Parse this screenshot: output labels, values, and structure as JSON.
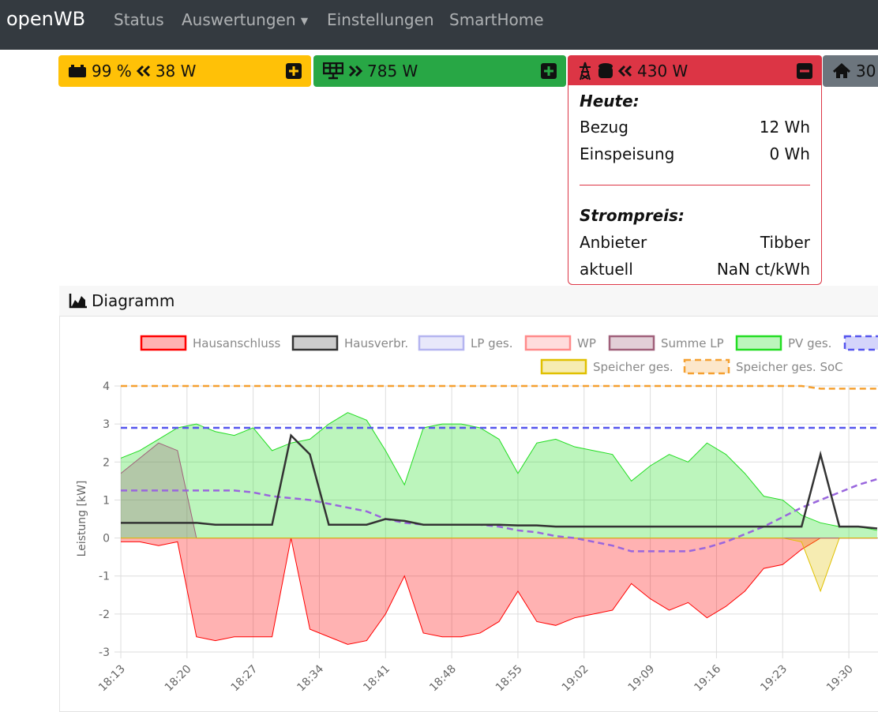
{
  "navbar": {
    "brand": "openWB",
    "links": [
      "Status",
      "Auswertungen",
      "Einstellungen",
      "SmartHome"
    ]
  },
  "status": {
    "battery": {
      "soc": "99 %",
      "power": "38 W"
    },
    "pv": {
      "power": "785 W"
    },
    "grid": {
      "power": "430 W",
      "details": {
        "today_title": "Heute:",
        "rows": [
          [
            "Bezug",
            "12 Wh"
          ],
          [
            "Einspeisung",
            "0 Wh"
          ]
        ],
        "price_title": "Strompreis:",
        "price_rows": [
          [
            "Anbieter",
            "Tibber"
          ],
          [
            "aktuell",
            "NaN ct/kWh"
          ]
        ]
      }
    },
    "house": {
      "power": "30"
    }
  },
  "diagram": {
    "title": "Diagramm"
  },
  "chart_data": {
    "type": "area",
    "ylabel": "Leistung [kW]",
    "x": [
      1093,
      1095,
      1097,
      1099,
      1101,
      1103,
      1105,
      1107,
      1109,
      1111,
      1113,
      1115,
      1117,
      1119,
      1121,
      1123,
      1125,
      1127,
      1129,
      1131,
      1133,
      1135,
      1137,
      1139,
      1141,
      1143,
      1145,
      1147,
      1149,
      1151,
      1153,
      1155,
      1157,
      1159,
      1161,
      1163,
      1165,
      1167,
      1169,
      1171,
      1173
    ],
    "xlim": [
      1093,
      1173
    ],
    "xticks": [
      {
        "value": 1093,
        "label": "18:13"
      },
      {
        "value": 1100,
        "label": "18:20"
      },
      {
        "value": 1107,
        "label": "18:27"
      },
      {
        "value": 1114,
        "label": "18:34"
      },
      {
        "value": 1121,
        "label": "18:41"
      },
      {
        "value": 1128,
        "label": "18:48"
      },
      {
        "value": 1135,
        "label": "18:55"
      },
      {
        "value": 1142,
        "label": "19:02"
      },
      {
        "value": 1149,
        "label": "19:09"
      },
      {
        "value": 1156,
        "label": "19:16"
      },
      {
        "value": 1163,
        "label": "19:23"
      },
      {
        "value": 1170,
        "label": "19:30"
      }
    ],
    "ylim": [
      -3,
      4
    ],
    "yticks": [
      -3,
      -2,
      -1,
      0,
      1,
      2,
      3,
      4
    ],
    "y2lim": [
      0,
      100
    ],
    "grid": true,
    "series": [
      {
        "name": "Hausanschluss",
        "color": "#ff0000",
        "fill": true,
        "dash": false,
        "values": [
          -0.1,
          -0.1,
          -0.2,
          -0.1,
          -2.6,
          -2.7,
          -2.6,
          -2.6,
          -2.6,
          0,
          -2.4,
          -2.6,
          -2.8,
          -2.7,
          -2.0,
          -1.0,
          -2.5,
          -2.6,
          -2.6,
          -2.5,
          -2.2,
          -1.4,
          -2.2,
          -2.3,
          -2.1,
          -2.0,
          -1.9,
          -1.2,
          -1.6,
          -1.9,
          -1.7,
          -2.1,
          -1.8,
          -1.4,
          -0.8,
          -0.7,
          -0.3,
          0,
          0,
          0,
          0
        ]
      },
      {
        "name": "Hausverbr.",
        "color": "#333333",
        "fill": false,
        "dash": false,
        "values": [
          0.4,
          0.4,
          0.4,
          0.4,
          0.4,
          0.35,
          0.35,
          0.35,
          0.35,
          2.7,
          2.2,
          0.35,
          0.35,
          0.35,
          0.5,
          0.45,
          0.35,
          0.35,
          0.35,
          0.35,
          0.35,
          0.33,
          0.33,
          0.3,
          0.3,
          0.3,
          0.3,
          0.3,
          0.3,
          0.3,
          0.3,
          0.3,
          0.3,
          0.3,
          0.3,
          0.3,
          0.3,
          2.2,
          0.3,
          0.3,
          0.25
        ]
      },
      {
        "name": "LP ges.",
        "color": "#b4b4f0",
        "fill": true,
        "dash": false,
        "values": [
          0,
          0,
          0,
          0,
          0,
          0,
          0,
          0,
          0,
          0,
          0,
          0,
          0,
          0,
          0,
          0,
          0,
          0,
          0,
          0,
          0,
          0,
          0,
          0,
          0,
          0,
          0,
          0,
          0,
          0,
          0,
          0,
          0,
          0,
          0,
          0,
          0,
          0,
          0,
          0,
          0
        ]
      },
      {
        "name": "WP",
        "color": "#ff8a8a",
        "fill": true,
        "dash": false,
        "values": [
          0,
          0,
          0,
          0,
          0,
          0,
          0,
          0,
          0,
          0,
          0,
          0,
          0,
          0,
          0,
          0,
          0,
          0,
          0,
          0,
          0,
          0,
          0,
          0,
          0,
          0,
          0,
          0,
          0,
          0,
          0,
          0,
          0,
          0,
          0,
          0,
          0,
          0,
          0,
          0,
          0
        ]
      },
      {
        "name": "Summe LP",
        "color": "#a0607a",
        "fill": true,
        "dash": false,
        "values": [
          1.7,
          2.1,
          2.5,
          2.3,
          0,
          0,
          0,
          0,
          0,
          0,
          0,
          0,
          0,
          0,
          0,
          0,
          0,
          0,
          0,
          0,
          0,
          0,
          0,
          0,
          0,
          0,
          0,
          0,
          0,
          0,
          0,
          0,
          0,
          0,
          0,
          0,
          0,
          0,
          0,
          0,
          0
        ]
      },
      {
        "name": "PV ges.",
        "color": "#22dd22",
        "fill": true,
        "dash": false,
        "values": [
          2.1,
          2.3,
          2.6,
          2.9,
          3.0,
          2.8,
          2.7,
          2.9,
          2.3,
          2.5,
          2.6,
          3.0,
          3.3,
          3.1,
          2.3,
          1.4,
          2.9,
          3.0,
          3.0,
          2.9,
          2.6,
          1.7,
          2.5,
          2.6,
          2.4,
          2.3,
          2.2,
          1.5,
          1.9,
          2.2,
          2.0,
          2.5,
          2.2,
          1.7,
          1.1,
          1.0,
          0.6,
          0.4,
          0.3,
          0.3,
          0.2
        ]
      },
      {
        "color": "#5555ee",
        "fill": false,
        "dash": true,
        "values": [
          2.9,
          2.9,
          2.9,
          2.9,
          2.9,
          2.9,
          2.9,
          2.9,
          2.9,
          2.9,
          2.9,
          2.9,
          2.9,
          2.9,
          2.9,
          2.9,
          2.9,
          2.9,
          2.9,
          2.9,
          2.9,
          2.9,
          2.9,
          2.9,
          2.9,
          2.9,
          2.9,
          2.9,
          2.9,
          2.9,
          2.9,
          2.9,
          2.9,
          2.9,
          2.9,
          2.9,
          2.9,
          2.9,
          2.9,
          2.9,
          2.9
        ]
      },
      {
        "name": "Speicher ges.",
        "color": "#e0c000",
        "fill": true,
        "dash": false,
        "values": [
          0,
          0,
          0,
          0,
          0,
          0,
          0,
          0,
          0,
          0,
          0,
          0,
          0,
          0,
          0,
          0,
          0,
          0,
          0,
          0,
          0,
          0,
          0,
          0,
          0,
          0,
          0,
          0,
          0,
          0,
          0,
          0,
          0,
          0,
          0,
          0,
          -0.1,
          -1.4,
          0,
          0,
          0
        ]
      },
      {
        "name": "Speicher ges. SoC",
        "color": "#f5a030",
        "fill": false,
        "dash": true,
        "axis": "y2",
        "values": [
          100,
          100,
          100,
          100,
          100,
          100,
          100,
          100,
          100,
          100,
          100,
          100,
          100,
          100,
          100,
          100,
          100,
          100,
          100,
          100,
          100,
          100,
          100,
          100,
          100,
          100,
          100,
          100,
          100,
          100,
          100,
          100,
          100,
          100,
          100,
          100,
          100,
          99,
          99,
          99,
          99
        ]
      },
      {
        "color": "#9966dd",
        "fill": false,
        "dash": true,
        "values": [
          1.25,
          1.25,
          1.25,
          1.25,
          1.25,
          1.25,
          1.25,
          1.2,
          1.1,
          1.05,
          1.0,
          0.9,
          0.8,
          0.7,
          0.5,
          0.4,
          0.35,
          0.35,
          0.35,
          0.35,
          0.3,
          0.2,
          0.15,
          0.05,
          0,
          -0.1,
          -0.2,
          -0.35,
          -0.35,
          -0.35,
          -0.35,
          -0.25,
          -0.1,
          0.1,
          0.3,
          0.55,
          0.8,
          1.0,
          1.2,
          1.4,
          1.55
        ]
      }
    ]
  }
}
